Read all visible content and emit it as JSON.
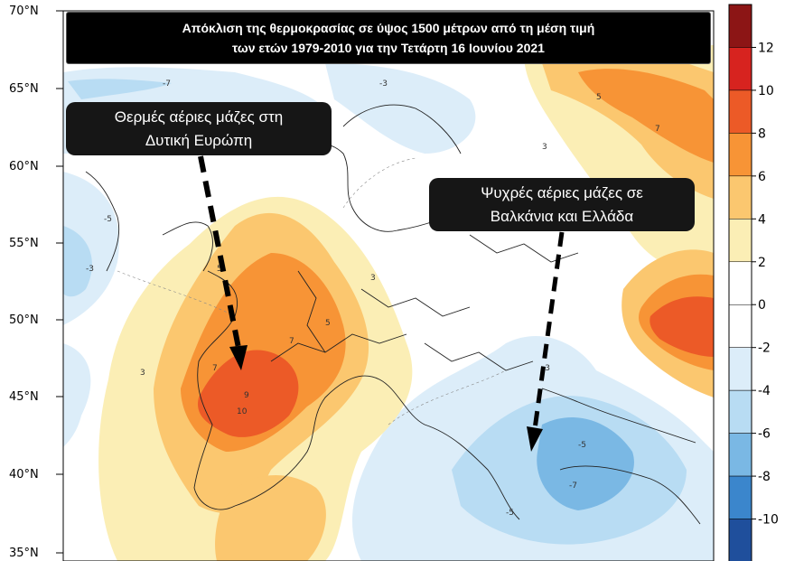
{
  "title": {
    "line1": "Απόκλιση της θερμοκρασίας σε ύψος 1500 μέτρων από τη μέση τιμή",
    "line2": "των ετών 1979-2010  για την Τετάρτη 16 Ιουνίου 2021"
  },
  "callouts": {
    "west": {
      "line1": "Θερμές αέριες μάζες στη",
      "line2": "Δυτική Ευρώπη"
    },
    "east": {
      "line1": "Ψυχρές αέριες μάζες σε",
      "line2": "Βαλκάνια και Ελλάδα"
    }
  },
  "latitude_labels": [
    "70°N",
    "65°N",
    "60°N",
    "55°N",
    "50°N",
    "45°N",
    "40°N",
    "35°N"
  ],
  "colorbar": {
    "ticks": [
      "12",
      "10",
      "8",
      "6",
      "4",
      "2",
      "0",
      "-2",
      "-4",
      "-6",
      "-8",
      "-10"
    ],
    "colors": [
      "#8c1515",
      "#d7231f",
      "#ec5a27",
      "#f79436",
      "#fbc76f",
      "#fbeeb5",
      "#ffffff",
      "#ffffff",
      "#dcedf9",
      "#b8dcf3",
      "#7ab8e4",
      "#3b86cc",
      "#1f4f9c"
    ]
  },
  "contour_labels": [
    "-7",
    "-5",
    "-3",
    "3",
    "5",
    "7",
    "9",
    "10",
    "3",
    "5",
    "7",
    "-3",
    "-5",
    "-7",
    "7",
    "5",
    "3",
    "-3",
    "-5"
  ]
}
